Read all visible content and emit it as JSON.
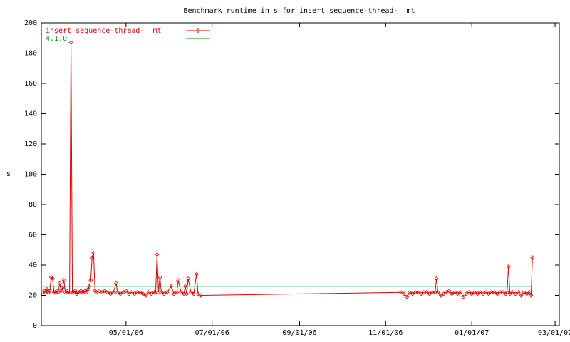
{
  "chart_data": {
    "type": "line",
    "title": "Benchmark runtime in s for insert sequence-thread-  mt",
    "y_label": "s",
    "xlim": [
      "03/02/06",
      "03/04/07"
    ],
    "xticks": [
      "05/01/06",
      "07/01/06",
      "09/01/06",
      "11/01/06",
      "01/01/07",
      "03/01/07"
    ],
    "ylim": [
      0,
      200
    ],
    "yticks": [
      0,
      20,
      40,
      60,
      80,
      100,
      120,
      140,
      160,
      180,
      200
    ],
    "grid": false,
    "legend": "top-left",
    "series": [
      {
        "name": "insert sequence-thread-  mt",
        "color": "#e00000",
        "markers": true,
        "x": [
          "03/03/06",
          "03/04/06",
          "03/05/06",
          "03/06/06",
          "03/07/06",
          "03/08/06",
          "03/09/06",
          "03/10/06",
          "03/11/06",
          "03/12/06",
          "03/13/06",
          "03/14/06",
          "03/15/06",
          "03/16/06",
          "03/17/06",
          "03/18/06",
          "03/19/06",
          "03/20/06",
          "03/21/06",
          "03/22/06",
          "03/23/06",
          "03/24/06",
          "03/25/06",
          "03/26/06",
          "03/27/06",
          "03/28/06",
          "03/29/06",
          "03/30/06",
          "03/31/06",
          "04/01/06",
          "04/02/06",
          "04/03/06",
          "04/04/06",
          "04/05/06",
          "04/06/06",
          "04/07/06",
          "04/08/06",
          "04/09/06",
          "04/10/06",
          "04/12/06",
          "04/14/06",
          "04/16/06",
          "04/18/06",
          "04/20/06",
          "04/22/06",
          "04/24/06",
          "04/25/06",
          "04/27/06",
          "04/29/06",
          "05/01/06",
          "05/03/06",
          "05/05/06",
          "05/07/06",
          "05/09/06",
          "05/11/06",
          "05/13/06",
          "05/15/06",
          "05/17/06",
          "05/19/06",
          "05/21/06",
          "05/22/06",
          "05/23/06",
          "05/24/06",
          "05/25/06",
          "05/26/06",
          "05/28/06",
          "05/30/06",
          "06/02/06",
          "06/04/06",
          "06/06/06",
          "06/07/06",
          "06/09/06",
          "06/11/06",
          "06/12/06",
          "06/13/06",
          "06/14/06",
          "06/16/06",
          "06/18/06",
          "06/20/06",
          "06/21/06",
          "06/23/06",
          "11/12/06",
          "11/14/06",
          "11/16/06",
          "11/18/06",
          "11/20/06",
          "11/22/06",
          "11/24/06",
          "11/26/06",
          "11/28/06",
          "11/30/06",
          "12/02/06",
          "12/04/06",
          "12/06/06",
          "12/07/06",
          "12/08/06",
          "12/10/06",
          "12/12/06",
          "12/14/06",
          "12/16/06",
          "12/18/06",
          "12/20/06",
          "12/22/06",
          "12/24/06",
          "12/26/06",
          "12/28/06",
          "12/30/06",
          "01/01/07",
          "01/03/07",
          "01/05/07",
          "01/07/07",
          "01/09/07",
          "01/11/07",
          "01/13/07",
          "01/15/07",
          "01/17/07",
          "01/19/07",
          "01/21/07",
          "01/23/07",
          "01/25/07",
          "01/26/07",
          "01/27/07",
          "01/28/07",
          "01/30/07",
          "02/01/07",
          "02/03/07",
          "02/05/07",
          "02/07/07",
          "02/09/07",
          "02/11/07",
          "02/12/07",
          "02/13/07"
        ],
        "values": [
          22,
          23,
          22,
          24,
          22,
          23,
          32,
          31,
          22,
          22,
          23,
          22,
          28,
          23,
          25,
          30,
          22,
          23,
          22,
          22,
          187,
          22,
          22,
          23,
          21,
          22,
          22,
          23,
          22,
          22,
          23,
          22,
          24,
          26,
          30,
          45,
          48,
          23,
          22,
          23,
          22,
          23,
          22,
          21,
          22,
          28,
          22,
          21,
          22,
          23,
          21,
          22,
          21,
          22,
          22,
          21,
          20,
          22,
          21,
          22,
          22,
          47,
          22,
          32,
          22,
          21,
          22,
          26,
          21,
          22,
          30,
          22,
          21,
          26,
          21,
          31,
          22,
          21,
          34,
          21,
          20,
          22,
          21,
          19,
          22,
          21,
          22,
          22,
          21,
          22,
          22,
          21,
          22,
          22,
          31,
          22,
          20,
          21,
          22,
          23,
          21,
          22,
          21,
          22,
          19,
          21,
          22,
          21,
          22,
          21,
          22,
          21,
          22,
          21,
          22,
          22,
          21,
          22,
          22,
          21,
          22,
          39,
          21,
          22,
          21,
          22,
          20,
          22,
          21,
          22,
          20,
          45
        ]
      },
      {
        "name": "4.1.0",
        "color": "#00a000",
        "markers": false,
        "x": [
          "03/03/06",
          "02/13/07"
        ],
        "values": [
          26,
          26
        ]
      }
    ]
  }
}
